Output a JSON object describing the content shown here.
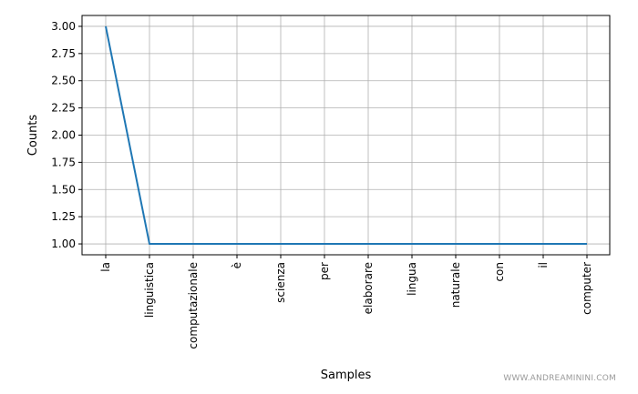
{
  "chart_data": {
    "type": "line",
    "categories": [
      "la",
      "linguistica",
      "computazionale",
      "è",
      "scienza",
      "per",
      "elaborare",
      "lingua",
      "naturale",
      "con",
      "il",
      "computer"
    ],
    "series": [
      {
        "values": [
          3,
          1,
          1,
          1,
          1,
          1,
          1,
          1,
          1,
          1,
          1,
          1
        ]
      }
    ],
    "xlabel": "Samples",
    "ylabel": "Counts",
    "ylim": [
      0.9,
      3.1
    ],
    "yticks": [
      1.0,
      1.25,
      1.5,
      1.75,
      2.0,
      2.25,
      2.5,
      2.75,
      3.0
    ],
    "ytick_labels": [
      "1.00",
      "1.25",
      "1.50",
      "1.75",
      "2.00",
      "2.25",
      "2.50",
      "2.75",
      "3.00"
    ],
    "grid": true,
    "line_color": "#1f77b4",
    "grid_color": "#b0b0b0"
  },
  "watermark": "WWW.ANDREAMININI.COM"
}
